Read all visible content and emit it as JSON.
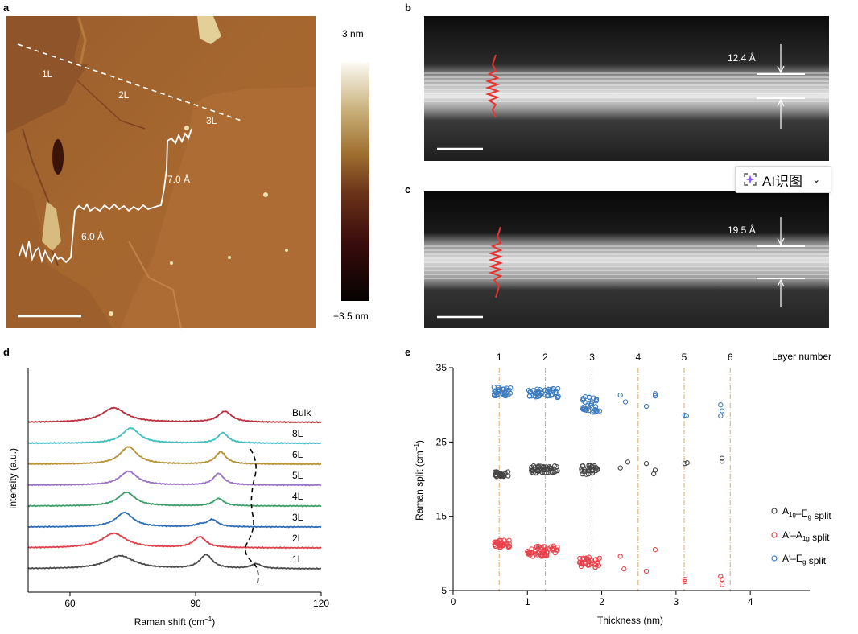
{
  "panels": {
    "a": {
      "label": "a",
      "layers": [
        "1L",
        "2L",
        "3L"
      ],
      "steps": [
        "6.0 Å",
        "7.0 Å"
      ],
      "colorbar": {
        "max": "3 nm",
        "min": "−3.5 nm"
      }
    },
    "b": {
      "label": "b",
      "spacing": "12.4 Å"
    },
    "c": {
      "label": "c",
      "spacing": "19.5 Å"
    },
    "d": {
      "label": "d",
      "xlabel": "Raman shift (cm",
      "xlabel_sup": "−1",
      "xlabel_end": ")",
      "ylabel": "Intensity (a.u.)",
      "xticks": [
        "60",
        "90",
        "120"
      ]
    },
    "e": {
      "label": "e",
      "xlabel": "Thickness (nm)",
      "ylabel": "Raman split (cm",
      "ylabel_sup": "−1",
      "ylabel_end": ")",
      "top_label": "Layer number",
      "legend": [
        {
          "pre": "A",
          "sub": "1g",
          "mid": "–E",
          "sub2": "g",
          "post": " split",
          "color": "#444444"
        },
        {
          "pre": "A′–A",
          "sub": "1g",
          "mid": "",
          "sub2": "",
          "post": " split",
          "color": "#e8414a"
        },
        {
          "pre": "A′–E",
          "sub": "g",
          "mid": "",
          "sub2": "",
          "post": " split",
          "color": "#3b7bbf"
        }
      ]
    }
  },
  "ai_button": {
    "label": "AI识图",
    "chevron": "⌄",
    "icon": "sparkle-icon"
  },
  "chart_data": [
    {
      "type": "line",
      "panel": "d",
      "xlabel": "Raman shift (cm−1)",
      "ylabel": "Intensity (a.u.)",
      "xlim": [
        50,
        120
      ],
      "xticks": [
        60,
        90,
        120
      ],
      "grid": false,
      "series": [
        {
          "name": "1L",
          "color": "#4a4a4a",
          "offset": 0,
          "peaks": [
            [
              72,
              0.9,
              4
            ],
            [
              92.5,
              0.95,
              1.8
            ],
            [
              104.5,
              0.32,
              1.5
            ]
          ]
        },
        {
          "name": "2L",
          "color": "#e0404a",
          "offset": 1,
          "peaks": [
            [
              70.5,
              1.0,
              3.5
            ],
            [
              91,
              0.75,
              1.8
            ]
          ]
        },
        {
          "name": "3L",
          "color": "#2f6db5",
          "offset": 2,
          "peaks": [
            [
              73,
              1.0,
              2.5
            ],
            [
              91,
              0.15,
              1.2
            ],
            [
              94,
              0.5,
              1.5
            ]
          ]
        },
        {
          "name": "4L",
          "color": "#3e9e6a",
          "offset": 3,
          "peaks": [
            [
              73.5,
              0.95,
              2.5
            ],
            [
              95.5,
              0.52,
              1.5
            ]
          ]
        },
        {
          "name": "5L",
          "color": "#9a72c4",
          "offset": 4,
          "peaks": [
            [
              74,
              0.95,
              2.5
            ],
            [
              95.5,
              0.8,
              1.5
            ]
          ]
        },
        {
          "name": "6L",
          "color": "#b89233",
          "offset": 5,
          "peaks": [
            [
              74,
              1.2,
              2.5
            ],
            [
              96,
              0.85,
              1.5
            ]
          ]
        },
        {
          "name": "8L",
          "color": "#3dbfbf",
          "offset": 6,
          "peaks": [
            [
              74.5,
              1.05,
              2.5
            ],
            [
              96.5,
              0.72,
              1.5
            ]
          ]
        },
        {
          "name": "Bulk",
          "color": "#b8303d",
          "offset": 7,
          "peaks": [
            [
              70.5,
              1.0,
              3.5
            ],
            [
              97,
              0.75,
              2
            ]
          ]
        }
      ]
    },
    {
      "type": "scatter",
      "panel": "e",
      "xlabel": "Thickness (nm)",
      "ylabel": "Raman split (cm−1)",
      "xlim": [
        0,
        4.8
      ],
      "ylim": [
        5,
        35
      ],
      "xticks": [
        0,
        1,
        2,
        3,
        4
      ],
      "yticks": [
        5,
        15,
        25,
        35
      ],
      "legend_position": "right",
      "layer_lines": [
        {
          "label": "1",
          "x": 0.62
        },
        {
          "label": "2",
          "x": 1.24
        },
        {
          "label": "3",
          "x": 1.87
        },
        {
          "label": "4",
          "x": 2.49
        },
        {
          "label": "5",
          "x": 3.11
        },
        {
          "label": "6",
          "x": 3.73
        }
      ],
      "series": [
        {
          "name": "A1g–Eg split",
          "color": "#444444",
          "clusters": [
            [
              0.55,
              0.75,
              20.3,
              21.0,
              28
            ],
            [
              1.05,
              1.42,
              20.8,
              21.8,
              45
            ],
            [
              1.72,
              1.95,
              20.6,
              21.9,
              30
            ]
          ],
          "points": [
            [
              2.25,
              21.5
            ],
            [
              2.35,
              22.3
            ],
            [
              2.6,
              22.1
            ],
            [
              2.72,
              21.2
            ],
            [
              2.7,
              20.7
            ],
            [
              3.15,
              22.2
            ],
            [
              3.12,
              22.1
            ],
            [
              3.62,
              22.8
            ],
            [
              3.62,
              22.4
            ]
          ]
        },
        {
          "name": "A′–A1g split",
          "color": "#e8414a",
          "clusters": [
            [
              0.55,
              0.78,
              10.8,
              11.8,
              30
            ],
            [
              1.0,
              1.42,
              9.6,
              11.0,
              50
            ],
            [
              1.7,
              1.98,
              8.0,
              9.7,
              35
            ]
          ],
          "points": [
            [
              2.25,
              9.6
            ],
            [
              2.3,
              7.9
            ],
            [
              2.6,
              7.6
            ],
            [
              2.72,
              10.5
            ],
            [
              3.12,
              6.5
            ],
            [
              3.12,
              6.2
            ],
            [
              3.6,
              6.9
            ],
            [
              3.62,
              6.5
            ],
            [
              3.62,
              5.8
            ]
          ]
        },
        {
          "name": "A′–Eg split",
          "color": "#3b7bbf",
          "clusters": [
            [
              0.55,
              0.78,
              31.2,
              32.4,
              30
            ],
            [
              1.0,
              1.42,
              31.0,
              32.2,
              48
            ],
            [
              1.72,
              1.98,
              29.0,
              31.2,
              32
            ]
          ],
          "points": [
            [
              2.25,
              31.3
            ],
            [
              2.32,
              30.4
            ],
            [
              2.6,
              29.8
            ],
            [
              2.72,
              31.5
            ],
            [
              2.72,
              31.2
            ],
            [
              3.12,
              28.6
            ],
            [
              3.14,
              28.5
            ],
            [
              3.6,
              30.0
            ],
            [
              3.62,
              29.2
            ],
            [
              3.6,
              28.5
            ]
          ]
        }
      ]
    }
  ]
}
